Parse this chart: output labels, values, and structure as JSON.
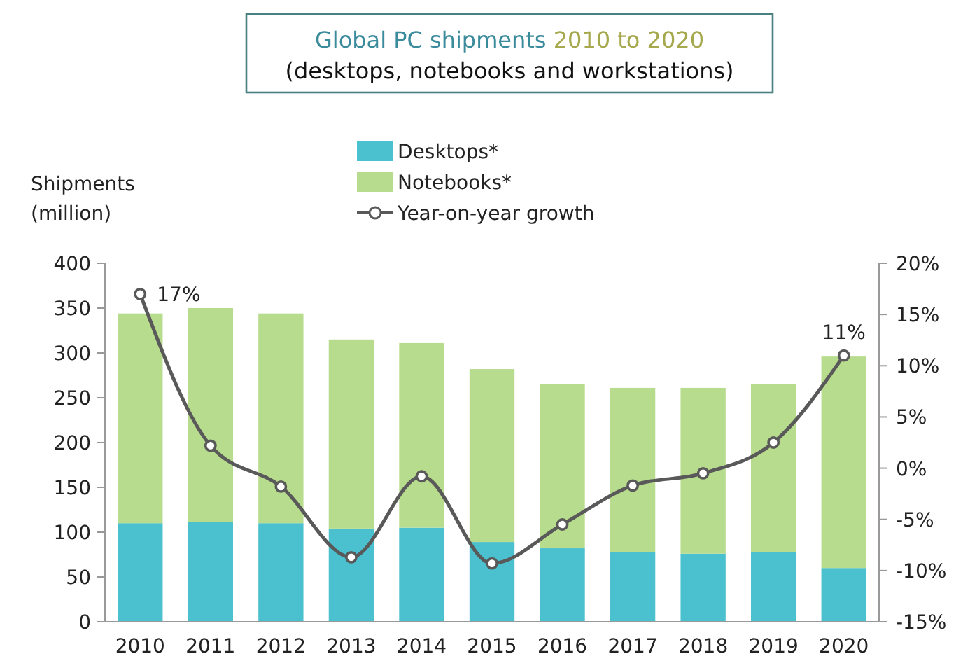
{
  "chart_data": {
    "type": "bar",
    "title": "Global PC shipments 2010 to 2020",
    "subtitle": "(desktops, notebooks and workstations)",
    "ylabel": "Shipments\n(million)",
    "categories": [
      "2010",
      "2011",
      "2012",
      "2013",
      "2014",
      "2015",
      "2016",
      "2017",
      "2018",
      "2019",
      "2020"
    ],
    "series": [
      {
        "name": "Desktops*",
        "color": "#4bc0cf",
        "values": [
          110,
          111,
          110,
          104,
          105,
          89,
          82,
          78,
          76,
          78,
          60
        ]
      },
      {
        "name": "Notebooks*",
        "color": "#b8dc8e",
        "values": [
          234,
          239,
          234,
          211,
          206,
          193,
          183,
          183,
          185,
          187,
          236
        ]
      },
      {
        "name": "Year-on-year growth",
        "type": "line",
        "axis": "y2",
        "color": "#595959",
        "marker": "circle",
        "values": [
          17,
          2.2,
          -1.8,
          -8.7,
          -0.8,
          -9.3,
          -5.5,
          -1.7,
          -0.5,
          2.5,
          11
        ],
        "value_labels": [
          "17%",
          null,
          null,
          null,
          null,
          null,
          null,
          null,
          null,
          null,
          "11%"
        ]
      }
    ],
    "stacked": true,
    "ylim": [
      0,
      400
    ],
    "yticks": [
      0,
      50,
      100,
      150,
      200,
      250,
      300,
      350,
      400
    ],
    "y2lim": [
      -15,
      20
    ],
    "y2ticks": [
      {
        "value": -15,
        "label": "-15%"
      },
      {
        "value": -10,
        "label": "-10%"
      },
      {
        "value": -5,
        "label": "-5%"
      },
      {
        "value": 0,
        "label": "0%"
      },
      {
        "value": 5,
        "label": "5%"
      },
      {
        "value": 10,
        "label": "10%"
      },
      {
        "value": 15,
        "label": "15%"
      },
      {
        "value": 20,
        "label": "20%"
      }
    ],
    "legend": "top",
    "grid": false
  }
}
